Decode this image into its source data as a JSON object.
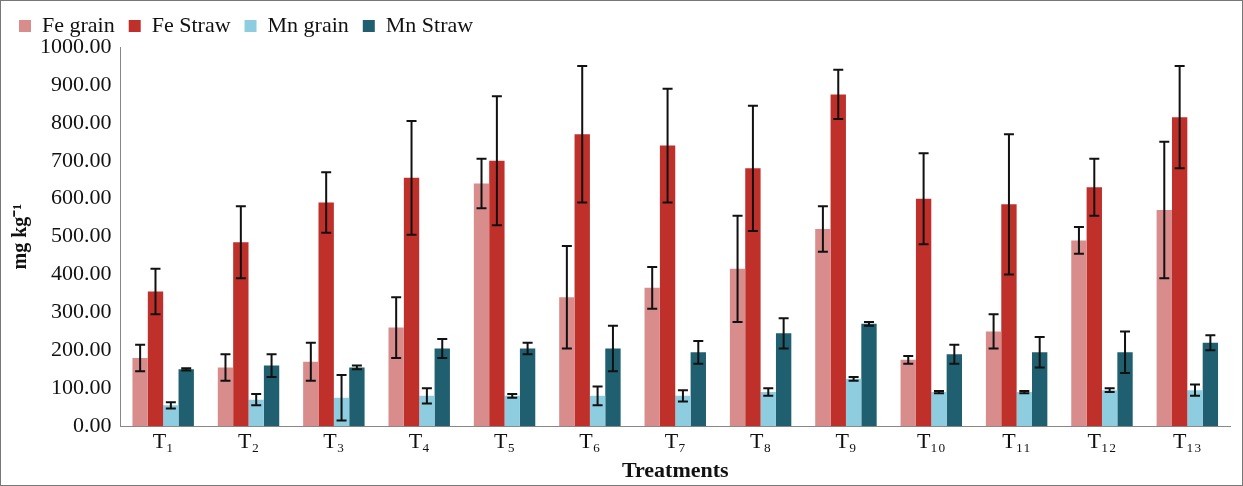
{
  "chart_data": {
    "type": "bar",
    "categories": [
      "T₁",
      "T₂",
      "T₃",
      "T₄",
      "T₅",
      "T₆",
      "T₇",
      "T₈",
      "T₉",
      "T₁₀",
      "T₁₁",
      "T₁₂",
      "T₁₃"
    ],
    "series": [
      {
        "name": "Fe grain",
        "color": "#d98c8c",
        "values": [
          180,
          155,
          170,
          260,
          640,
          340,
          365,
          415,
          520,
          175,
          250,
          490,
          570
        ],
        "errors": [
          35,
          35,
          50,
          80,
          65,
          135,
          55,
          140,
          60,
          10,
          45,
          35,
          180
        ]
      },
      {
        "name": "Fe Straw",
        "color": "#c0302b",
        "values": [
          355,
          485,
          590,
          655,
          700,
          770,
          740,
          680,
          875,
          600,
          585,
          630,
          815
        ],
        "errors": [
          60,
          95,
          80,
          150,
          170,
          180,
          150,
          165,
          65,
          120,
          185,
          75,
          135
        ]
      },
      {
        "name": "Mn grain",
        "color": "#8ecde0",
        "values": [
          55,
          70,
          75,
          80,
          80,
          80,
          80,
          90,
          125,
          90,
          90,
          95,
          95
        ],
        "errors": [
          8,
          15,
          60,
          20,
          5,
          25,
          15,
          10,
          5,
          3,
          3,
          5,
          15
        ]
      },
      {
        "name": "Mn Straw",
        "color": "#1f5f6f",
        "values": [
          150,
          160,
          155,
          205,
          205,
          205,
          195,
          245,
          270,
          190,
          195,
          195,
          220
        ],
        "errors": [
          3,
          30,
          5,
          25,
          15,
          60,
          30,
          40,
          5,
          25,
          40,
          55,
          20
        ]
      }
    ],
    "xlabel": "Treatments",
    "ylabel": "mg kg⁻¹",
    "ylim": [
      0,
      1000
    ],
    "yticks": [
      {
        "value": 0,
        "label": "0.00"
      },
      {
        "value": 100,
        "label": "100.00"
      },
      {
        "value": 200,
        "label": "200.00"
      },
      {
        "value": 300,
        "label": "300.00"
      },
      {
        "value": 400,
        "label": "400.00"
      },
      {
        "value": 500,
        "label": "500.00"
      },
      {
        "value": 600,
        "label": "600.00"
      },
      {
        "value": 700,
        "label": "700.00"
      },
      {
        "value": 800,
        "label": "800.00"
      },
      {
        "value": 900,
        "label": "900.00"
      },
      {
        "value": 1000,
        "label": "1000.00"
      }
    ],
    "grid": false,
    "legend": "top"
  }
}
